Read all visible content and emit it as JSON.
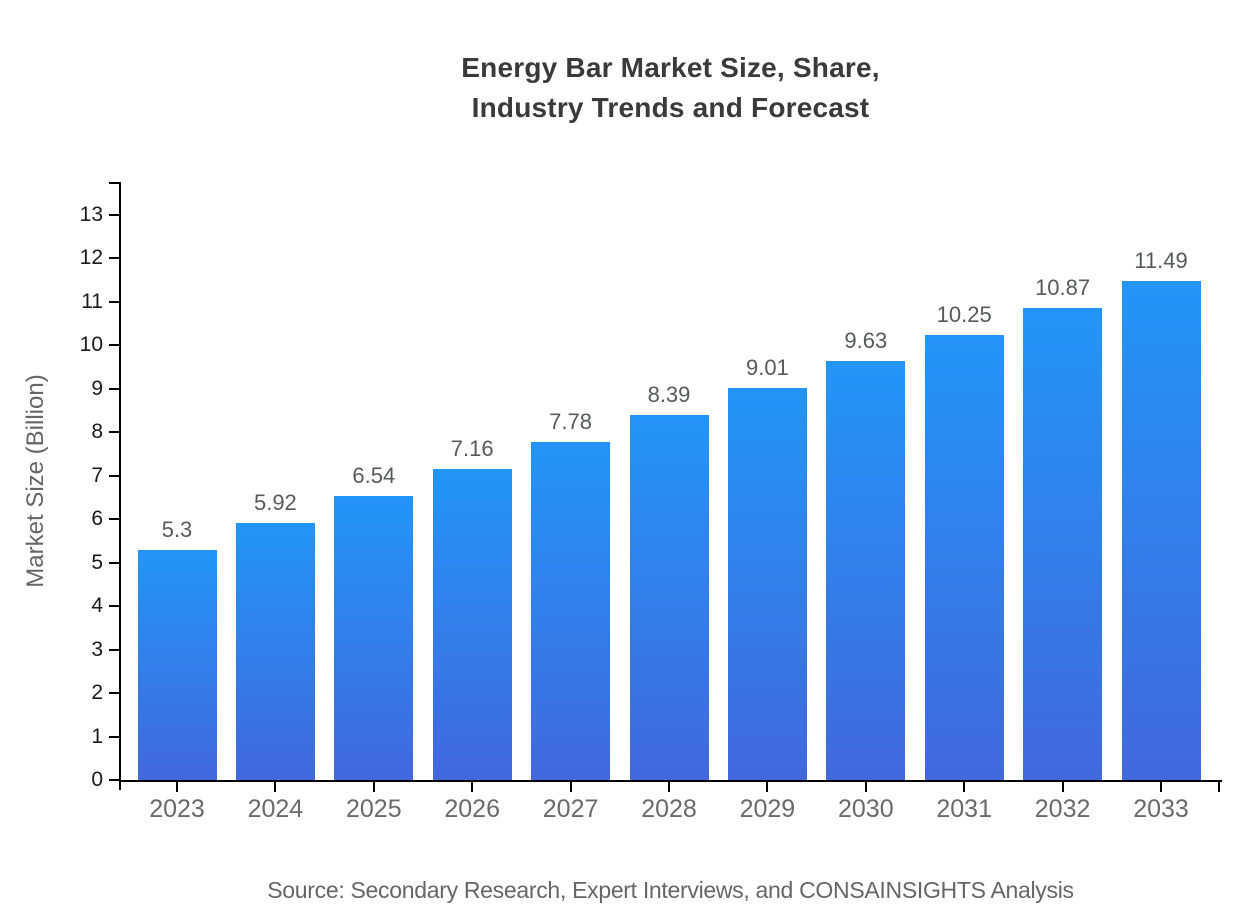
{
  "title": {
    "line1": "Energy Bar Market Size, Share,",
    "line2": "Industry Trends and Forecast"
  },
  "source_note": "Source: Secondary Research, Expert Interviews, and CONSAINSIGHTS Analysis",
  "colors": {
    "bar_gradient_top": "#2395f8",
    "bar_gradient_bottom": "#4168dc",
    "axis": "#000000",
    "y_tick_label": "#1a1a1a",
    "x_tick_label": "#6a6a6a",
    "value_label": "#58595b",
    "title": "#3a3a3a",
    "muted": "#666666"
  },
  "chart_data": {
    "type": "bar",
    "title": "Energy Bar Market Size, Share, Industry Trends and Forecast",
    "categories": [
      "2023",
      "2024",
      "2025",
      "2026",
      "2027",
      "2028",
      "2029",
      "2030",
      "2031",
      "2032",
      "2033"
    ],
    "values": [
      5.3,
      5.92,
      6.54,
      7.16,
      7.78,
      8.39,
      9.01,
      9.63,
      10.25,
      10.87,
      11.49
    ],
    "data_labels": [
      "5.3",
      "5.92",
      "6.54",
      "7.16",
      "7.78",
      "8.39",
      "9.01",
      "9.63",
      "10.25",
      "10.87",
      "11.49"
    ],
    "xlabel": "",
    "ylabel": "Market Size (Billion)",
    "ylim": [
      0,
      13
    ],
    "yticks": [
      0,
      1,
      2,
      3,
      4,
      5,
      6,
      7,
      8,
      9,
      10,
      11,
      12,
      13
    ],
    "grid": false,
    "legend": false
  }
}
